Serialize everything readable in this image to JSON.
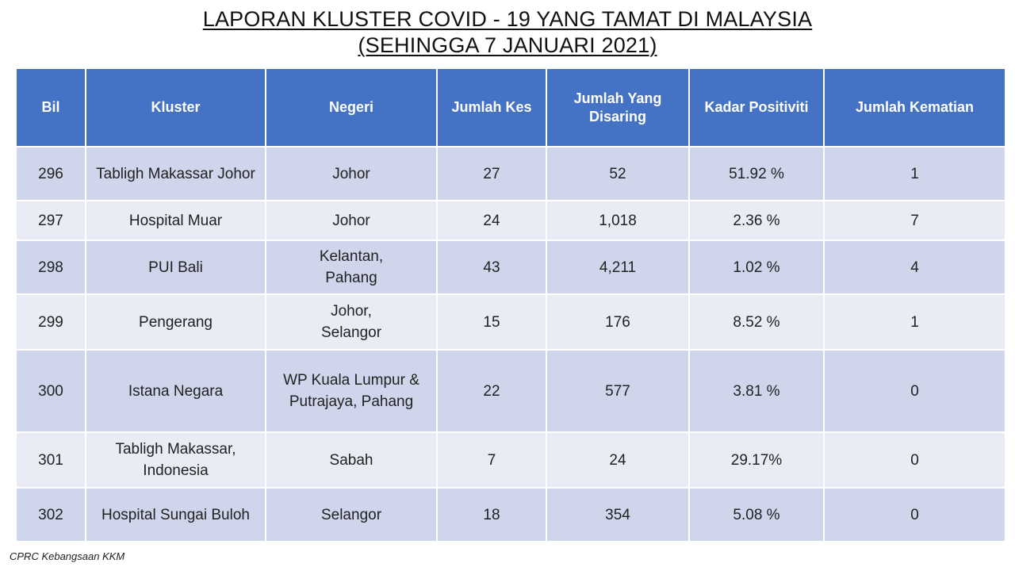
{
  "title": {
    "line1": "LAPORAN KLUSTER COVID - 19 YANG TAMAT DI MALAYSIA",
    "line2": "(SEHINGGA 7 JANUARI 2021)"
  },
  "table": {
    "headers": [
      "Bil",
      "Kluster",
      "Negeri",
      "Jumlah Kes",
      "Jumlah Yang\nDisaring",
      "Kadar Positiviti",
      "Jumlah Kematian"
    ],
    "rows": [
      [
        "296",
        "Tabligh Makassar Johor",
        "Johor",
        "27",
        "52",
        "51.92 %",
        "1"
      ],
      [
        "297",
        "Hospital Muar",
        "Johor",
        "24",
        "1,018",
        "2.36 %",
        "7"
      ],
      [
        "298",
        "PUI Bali",
        "Kelantan,\nPahang",
        "43",
        "4,211",
        "1.02 %",
        "4"
      ],
      [
        "299",
        "Pengerang",
        "Johor,\nSelangor",
        "15",
        "176",
        "8.52 %",
        "1"
      ],
      [
        "300",
        "Istana Negara",
        "WP Kuala Lumpur &\nPutrajaya, Pahang",
        "22",
        "577",
        "3.81 %",
        "0"
      ],
      [
        "301",
        "Tabligh Makassar,\nIndonesia",
        "Sabah",
        "7",
        "24",
        "29.17%",
        "0"
      ],
      [
        "302",
        "Hospital Sungai Buloh",
        "Selangor",
        "18",
        "354",
        "5.08 %",
        "0"
      ]
    ]
  },
  "footer": "CPRC Kebangsaan KKM"
}
